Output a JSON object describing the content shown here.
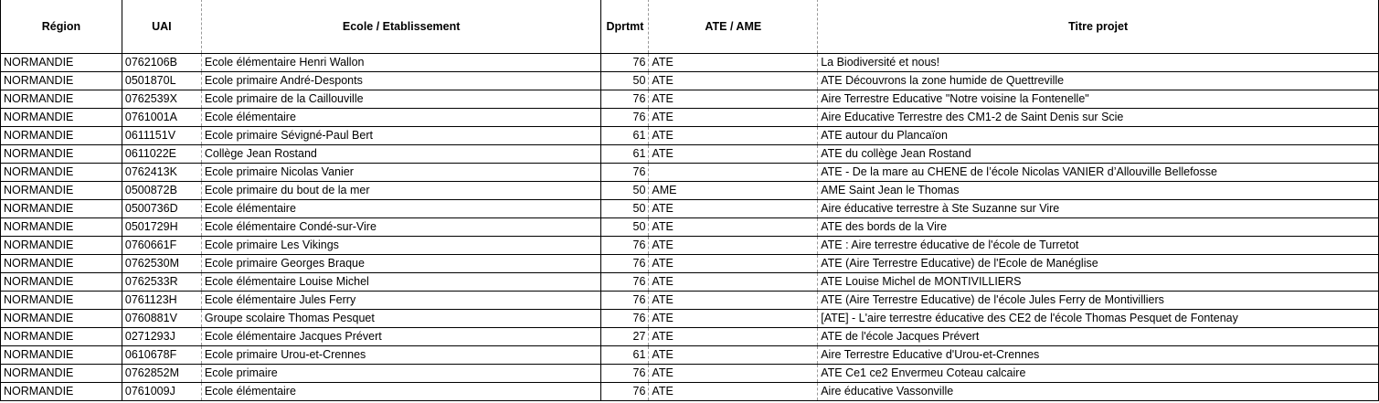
{
  "headers": [
    "Région",
    "UAI",
    "Ecole / Etablissement",
    "Dprtmt",
    "ATE / AME",
    "Titre projet"
  ],
  "rows": [
    [
      "NORMANDIE",
      "0762106B",
      "Ecole élémentaire Henri Wallon",
      "76",
      "ATE",
      "La Biodiversité et nous!"
    ],
    [
      "NORMANDIE",
      "0501870L",
      "Ecole primaire André-Desponts",
      "50",
      "ATE",
      "ATE Découvrons la zone humide de Quettreville"
    ],
    [
      "NORMANDIE",
      "0762539X",
      "Ecole primaire de la Caillouville",
      "76",
      "ATE",
      "Aire Terrestre Educative \"Notre voisine la Fontenelle\""
    ],
    [
      "NORMANDIE",
      "0761001A",
      "Ecole élémentaire",
      "76",
      "ATE",
      "Aire Educative Terrestre des CM1-2 de Saint Denis sur Scie"
    ],
    [
      "NORMANDIE",
      "0611151V",
      "Ecole primaire Sévigné-Paul Bert",
      "61",
      "ATE",
      "ATE autour du Plancaïon"
    ],
    [
      "NORMANDIE",
      "0611022E",
      "Collège Jean Rostand",
      "61",
      "ATE",
      "ATE du collège Jean Rostand"
    ],
    [
      "NORMANDIE",
      "0762413K",
      "Ecole primaire Nicolas Vanier",
      "76",
      "",
      "ATE - De la mare au CHENE de l’école Nicolas VANIER d’Allouville Bellefosse"
    ],
    [
      "NORMANDIE",
      "0500872B",
      "Ecole primaire du bout de la mer",
      "50",
      "AME",
      "AME Saint Jean le Thomas"
    ],
    [
      "NORMANDIE",
      "0500736D",
      "Ecole élémentaire",
      "50",
      "ATE",
      "Aire éducative terrestre à Ste Suzanne sur Vire"
    ],
    [
      "NORMANDIE",
      "0501729H",
      "Ecole élémentaire Condé-sur-Vire",
      "50",
      "ATE",
      "ATE des bords de la Vire"
    ],
    [
      "NORMANDIE",
      "0760661F",
      "Ecole primaire Les Vikings",
      "76",
      "ATE",
      "ATE : Aire terrestre éducative de l'école de Turretot"
    ],
    [
      "NORMANDIE",
      "0762530M",
      "Ecole primaire Georges Braque",
      "76",
      "ATE",
      "ATE (Aire Terrestre Educative) de l'Ecole de Manéglise"
    ],
    [
      "NORMANDIE",
      "0762533R",
      "Ecole élémentaire Louise Michel",
      "76",
      "ATE",
      "ATE Louise Michel de MONTIVILLIERS"
    ],
    [
      "NORMANDIE",
      "0761123H",
      "Ecole élémentaire Jules Ferry",
      "76",
      "ATE",
      "ATE (Aire Terrestre Educative) de l'école Jules Ferry de Montivilliers"
    ],
    [
      "NORMANDIE",
      "0760881V",
      "Groupe scolaire Thomas Pesquet",
      "76",
      "ATE",
      "[ATE] - L'aire terrestre éducative des CE2 de l'école Thomas Pesquet de Fontenay"
    ],
    [
      "NORMANDIE",
      "0271293J",
      "Ecole élémentaire Jacques Prévert",
      "27",
      "ATE",
      "ATE de l'école Jacques Prévert"
    ],
    [
      "NORMANDIE",
      "0610678F",
      "Ecole primaire Urou-et-Crennes",
      "61",
      "ATE",
      "Aire Terrestre Educative d'Urou-et-Crennes"
    ],
    [
      "NORMANDIE",
      "0762852M",
      "Ecole primaire",
      "76",
      "ATE",
      "ATE Ce1 ce2 Envermeu Coteau calcaire"
    ],
    [
      "NORMANDIE",
      "0761009J",
      "Ecole élémentaire",
      "76",
      "ATE",
      "Aire éducative Vassonville"
    ]
  ]
}
